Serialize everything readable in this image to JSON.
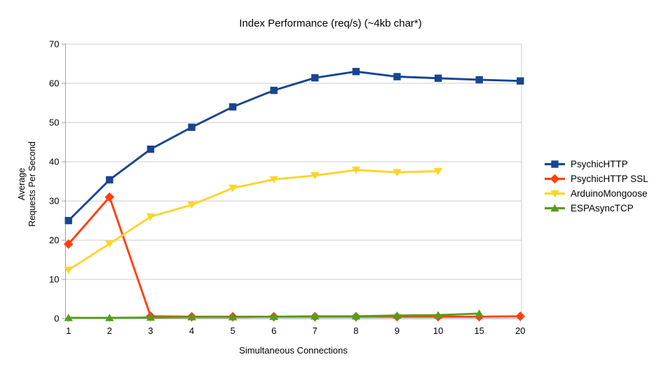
{
  "chart_data": {
    "type": "line",
    "title": "Index Performance (req/s) (~4kb char*)",
    "xlabel": "Simultaneous Connections",
    "ylabel_lines": [
      "Average",
      "Requests Per Second"
    ],
    "categories": [
      "1",
      "2",
      "3",
      "4",
      "5",
      "6",
      "7",
      "8",
      "9",
      "10",
      "15",
      "20"
    ],
    "y_ticks": [
      0,
      10,
      20,
      30,
      40,
      50,
      60,
      70
    ],
    "ylim": [
      0,
      70
    ],
    "grid": "horizontal-major",
    "legend_position": "right",
    "colors": {
      "background": "#FFFFFF",
      "grid": "#CDCDCD",
      "axis": "#9E9E9E",
      "text": "#000000"
    },
    "series": [
      {
        "name": "PsychicHTTP",
        "color": "#17468F",
        "marker": "square",
        "values": [
          25,
          35.4,
          43.2,
          48.8,
          54,
          58.2,
          61.4,
          63,
          61.7,
          61.3,
          60.9,
          60.6
        ]
      },
      {
        "name": "PsychicHTTP SSL",
        "color": "#FF420E",
        "marker": "diamond",
        "values": [
          19,
          31,
          0.6,
          0.5,
          0.5,
          0.5,
          0.5,
          0.5,
          0.5,
          0.5,
          0.5,
          0.6
        ]
      },
      {
        "name": "ArduinoMongoose",
        "color": "#FFD428",
        "marker": "triangle-down",
        "values": [
          12.4,
          19.1,
          26,
          29,
          33.3,
          35.5,
          36.5,
          37.9,
          37.3,
          37.6
        ]
      },
      {
        "name": "ESPAsyncTCP",
        "color": "#579D1C",
        "marker": "triangle-up",
        "values": [
          0.2,
          0.2,
          0.3,
          0.4,
          0.4,
          0.5,
          0.6,
          0.6,
          0.8,
          0.9,
          1.3
        ]
      }
    ]
  }
}
